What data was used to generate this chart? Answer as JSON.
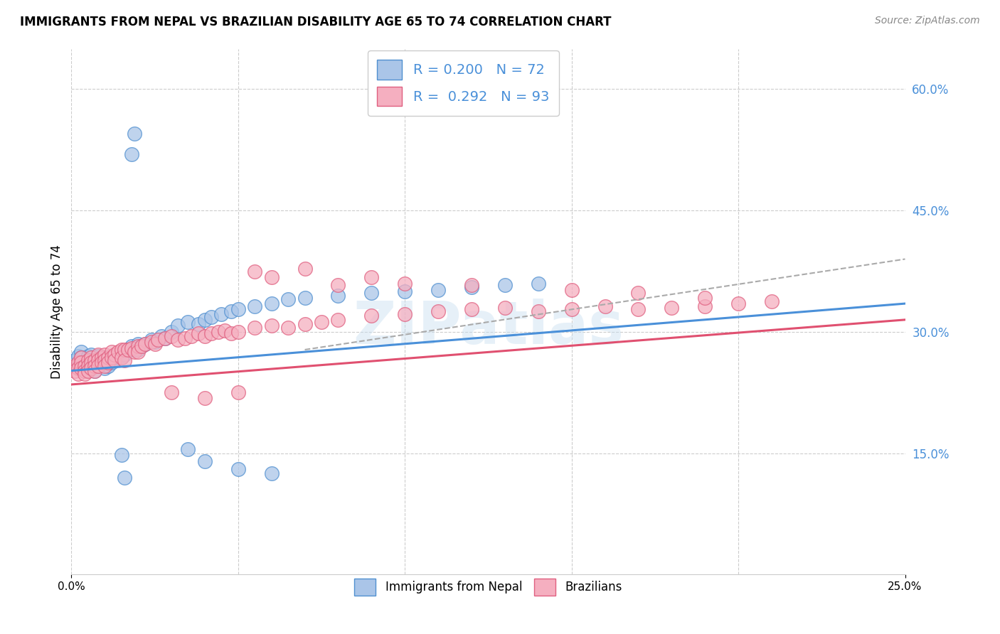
{
  "title": "IMMIGRANTS FROM NEPAL VS BRAZILIAN DISABILITY AGE 65 TO 74 CORRELATION CHART",
  "source": "Source: ZipAtlas.com",
  "ylabel": "Disability Age 65 to 74",
  "legend_label1": "Immigrants from Nepal",
  "legend_label2": "Brazilians",
  "R1": "0.200",
  "N1": "72",
  "R2": "0.292",
  "N2": "93",
  "color_nepal_fill": "#aac5e8",
  "color_nepal_edge": "#5090d0",
  "color_brazil_fill": "#f5afc0",
  "color_brazil_edge": "#e06080",
  "color_trend_nepal": "#4a90d9",
  "color_trend_brazil": "#e05070",
  "color_trend_dashed": "#aaaaaa",
  "watermark": "ZIPatlas",
  "nepal_x": [
    0.001,
    0.002,
    0.002,
    0.003,
    0.003,
    0.003,
    0.004,
    0.004,
    0.005,
    0.005,
    0.006,
    0.006,
    0.007,
    0.007,
    0.007,
    0.008,
    0.008,
    0.008,
    0.009,
    0.009,
    0.01,
    0.01,
    0.01,
    0.011,
    0.011,
    0.012,
    0.012,
    0.013,
    0.013,
    0.014,
    0.015,
    0.015,
    0.016,
    0.017,
    0.018,
    0.019,
    0.02,
    0.02,
    0.021,
    0.022,
    0.024,
    0.025,
    0.027,
    0.028,
    0.03,
    0.032,
    0.035,
    0.038,
    0.04,
    0.042,
    0.045,
    0.048,
    0.05,
    0.055,
    0.06,
    0.065,
    0.07,
    0.08,
    0.09,
    0.1,
    0.11,
    0.12,
    0.13,
    0.14,
    0.015,
    0.016,
    0.035,
    0.04,
    0.05,
    0.06,
    0.018,
    0.019
  ],
  "nepal_y": [
    0.265,
    0.27,
    0.258,
    0.275,
    0.268,
    0.26,
    0.262,
    0.255,
    0.27,
    0.258,
    0.272,
    0.265,
    0.263,
    0.258,
    0.252,
    0.27,
    0.265,
    0.26,
    0.268,
    0.262,
    0.268,
    0.26,
    0.255,
    0.265,
    0.258,
    0.268,
    0.262,
    0.27,
    0.265,
    0.268,
    0.275,
    0.268,
    0.272,
    0.278,
    0.282,
    0.278,
    0.285,
    0.278,
    0.282,
    0.285,
    0.29,
    0.288,
    0.295,
    0.292,
    0.3,
    0.308,
    0.312,
    0.31,
    0.315,
    0.318,
    0.322,
    0.325,
    0.328,
    0.332,
    0.335,
    0.34,
    0.342,
    0.345,
    0.348,
    0.35,
    0.352,
    0.355,
    0.358,
    0.36,
    0.148,
    0.12,
    0.155,
    0.14,
    0.13,
    0.125,
    0.52,
    0.545
  ],
  "brazil_x": [
    0.001,
    0.001,
    0.002,
    0.002,
    0.002,
    0.003,
    0.003,
    0.003,
    0.004,
    0.004,
    0.004,
    0.005,
    0.005,
    0.005,
    0.006,
    0.006,
    0.006,
    0.007,
    0.007,
    0.007,
    0.008,
    0.008,
    0.008,
    0.009,
    0.009,
    0.01,
    0.01,
    0.01,
    0.011,
    0.011,
    0.012,
    0.012,
    0.013,
    0.013,
    0.014,
    0.015,
    0.015,
    0.016,
    0.016,
    0.017,
    0.018,
    0.019,
    0.02,
    0.02,
    0.021,
    0.022,
    0.024,
    0.025,
    0.026,
    0.028,
    0.03,
    0.032,
    0.034,
    0.036,
    0.038,
    0.04,
    0.042,
    0.044,
    0.046,
    0.048,
    0.05,
    0.055,
    0.06,
    0.065,
    0.07,
    0.075,
    0.08,
    0.09,
    0.1,
    0.11,
    0.12,
    0.13,
    0.14,
    0.15,
    0.16,
    0.17,
    0.18,
    0.19,
    0.2,
    0.21,
    0.055,
    0.06,
    0.07,
    0.08,
    0.09,
    0.1,
    0.12,
    0.15,
    0.17,
    0.19,
    0.03,
    0.04,
    0.05
  ],
  "brazil_y": [
    0.258,
    0.252,
    0.262,
    0.255,
    0.248,
    0.268,
    0.262,
    0.255,
    0.258,
    0.252,
    0.248,
    0.265,
    0.258,
    0.252,
    0.268,
    0.262,
    0.255,
    0.265,
    0.258,
    0.252,
    0.272,
    0.265,
    0.258,
    0.268,
    0.262,
    0.272,
    0.265,
    0.258,
    0.268,
    0.262,
    0.275,
    0.268,
    0.272,
    0.265,
    0.275,
    0.278,
    0.268,
    0.278,
    0.265,
    0.278,
    0.28,
    0.275,
    0.282,
    0.275,
    0.282,
    0.285,
    0.288,
    0.285,
    0.29,
    0.292,
    0.295,
    0.29,
    0.292,
    0.295,
    0.298,
    0.295,
    0.298,
    0.3,
    0.302,
    0.298,
    0.3,
    0.305,
    0.308,
    0.305,
    0.31,
    0.312,
    0.315,
    0.32,
    0.322,
    0.325,
    0.328,
    0.33,
    0.325,
    0.328,
    0.332,
    0.328,
    0.33,
    0.332,
    0.335,
    0.338,
    0.375,
    0.368,
    0.378,
    0.358,
    0.368,
    0.36,
    0.358,
    0.352,
    0.348,
    0.342,
    0.225,
    0.218,
    0.225
  ],
  "xmin": 0.0,
  "xmax": 0.25,
  "ymin": 0.0,
  "ymax": 0.65,
  "ytick_vals": [
    0.15,
    0.3,
    0.45,
    0.6
  ],
  "ytick_labels": [
    "15.0%",
    "30.0%",
    "45.0%",
    "60.0%"
  ],
  "xtick_vals": [
    0.0,
    0.05,
    0.1,
    0.15,
    0.2
  ],
  "nepal_trend": [
    0.0,
    0.25,
    0.252,
    0.335
  ],
  "brazil_trend": [
    0.0,
    0.25,
    0.235,
    0.315
  ],
  "dashed_trend": [
    0.07,
    0.25,
    0.278,
    0.39
  ]
}
